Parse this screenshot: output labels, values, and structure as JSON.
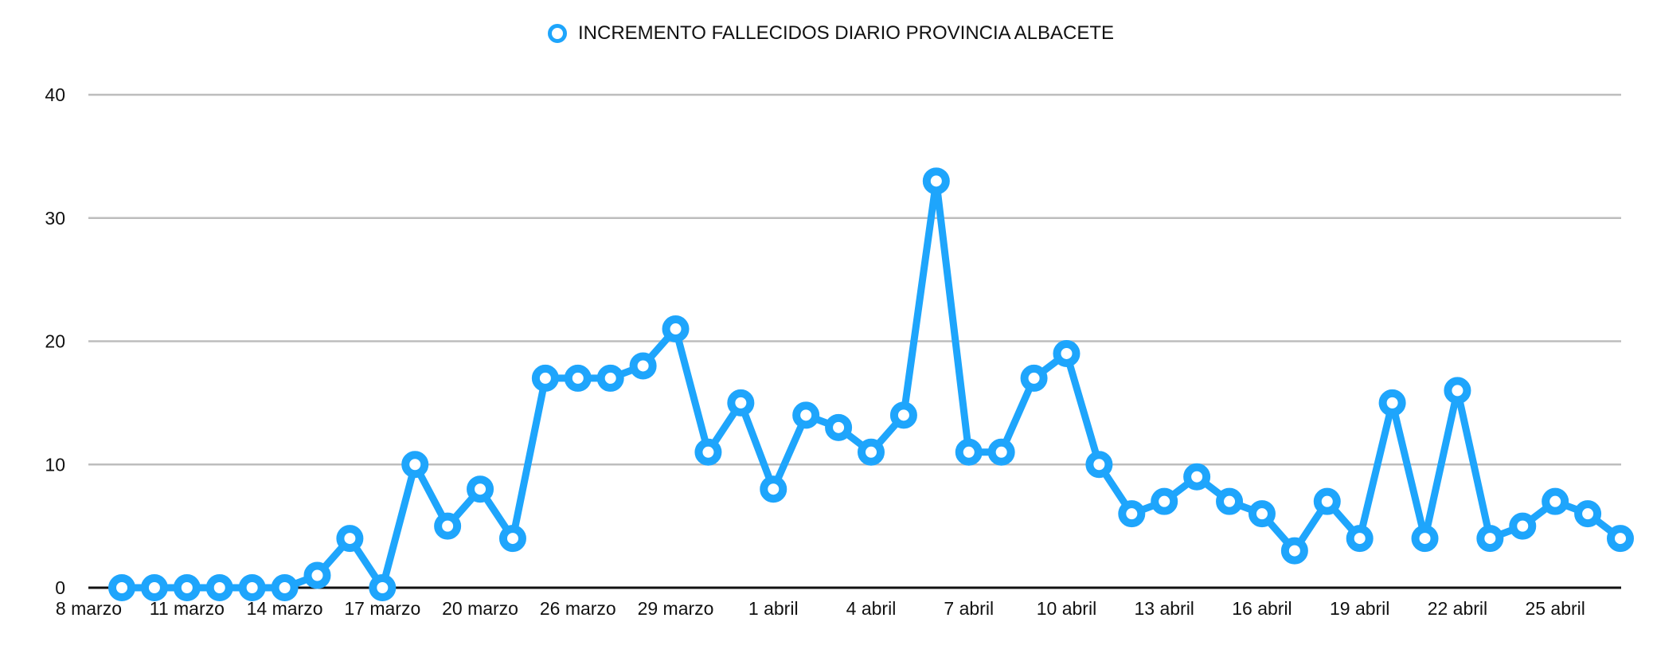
{
  "colors": {
    "series": "#1EA5FC",
    "gridline": "#BDBDBD",
    "axis": "#111111",
    "background": "#FFFFFF"
  },
  "legend": {
    "label": "INCREMENTO FALLECIDOS DIARIO PROVINCIA ALBACETE",
    "icon": "circle-marker-icon"
  },
  "chart_data": {
    "type": "line",
    "title": "",
    "xlabel": "",
    "ylabel": "",
    "ylim": [
      0,
      40
    ],
    "yticks": [
      0,
      10,
      20,
      30,
      40
    ],
    "grid": true,
    "legend_position": "top-center",
    "x_tick_labels": [
      {
        "index": 0,
        "label": "8 marzo"
      },
      {
        "index": 2,
        "label": "11 marzo"
      },
      {
        "index": 5,
        "label": "14 marzo"
      },
      {
        "index": 8,
        "label": "17 marzo"
      },
      {
        "index": 11,
        "label": "20 marzo"
      },
      {
        "index": 14,
        "label": "26 marzo"
      },
      {
        "index": 17,
        "label": "29 marzo"
      },
      {
        "index": 20,
        "label": "1 abril"
      },
      {
        "index": 23,
        "label": "4 abril"
      },
      {
        "index": 26,
        "label": "7 abril"
      },
      {
        "index": 29,
        "label": "10 abril"
      },
      {
        "index": 32,
        "label": "13 abril"
      },
      {
        "index": 35,
        "label": "16 abril"
      },
      {
        "index": 38,
        "label": "19 abril"
      },
      {
        "index": 41,
        "label": "22 abril"
      },
      {
        "index": 44,
        "label": "25 abril"
      }
    ],
    "series": [
      {
        "name": "INCREMENTO FALLECIDOS DIARIO PROVINCIA ALBACETE",
        "values": [
          0,
          0,
          0,
          0,
          0,
          0,
          1,
          4,
          0,
          10,
          5,
          8,
          4,
          17,
          17,
          17,
          18,
          21,
          11,
          15,
          8,
          14,
          13,
          11,
          14,
          33,
          11,
          11,
          17,
          19,
          10,
          6,
          7,
          9,
          7,
          6,
          3,
          7,
          4,
          15,
          4,
          16,
          4,
          5,
          7,
          6,
          4
        ]
      }
    ]
  }
}
